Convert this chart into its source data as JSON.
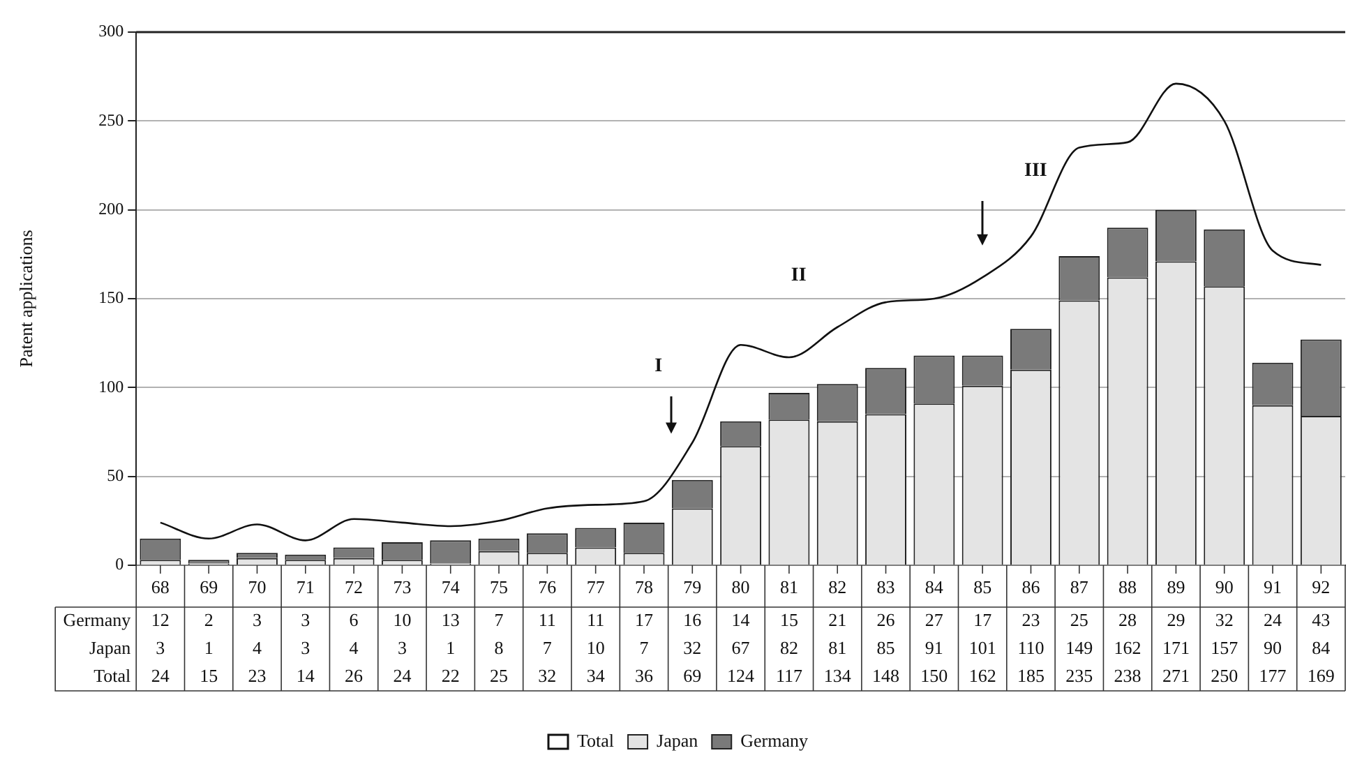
{
  "chart_data": {
    "type": "bar",
    "ylabel": "Patent applications",
    "categories": [
      "68",
      "69",
      "70",
      "71",
      "72",
      "73",
      "74",
      "75",
      "76",
      "77",
      "78",
      "79",
      "80",
      "81",
      "82",
      "83",
      "84",
      "85",
      "86",
      "87",
      "88",
      "89",
      "90",
      "91",
      "92"
    ],
    "series": [
      {
        "name": "Japan",
        "color": "#e4e4e4",
        "values": [
          3,
          1,
          4,
          3,
          4,
          3,
          1,
          8,
          7,
          10,
          7,
          32,
          67,
          82,
          81,
          85,
          91,
          101,
          110,
          149,
          162,
          171,
          157,
          90,
          84
        ]
      },
      {
        "name": "Germany",
        "color": "#7a7a7a",
        "values": [
          12,
          2,
          3,
          3,
          6,
          10,
          13,
          7,
          11,
          11,
          17,
          16,
          14,
          15,
          21,
          26,
          27,
          17,
          23,
          25,
          28,
          29,
          32,
          24,
          43
        ]
      },
      {
        "name": "Total",
        "type": "line",
        "color": "#111111",
        "values": [
          24,
          15,
          23,
          14,
          26,
          24,
          22,
          25,
          32,
          34,
          36,
          69,
          124,
          117,
          134,
          148,
          150,
          162,
          185,
          235,
          238,
          271,
          250,
          177,
          169
        ]
      }
    ],
    "stacked": true,
    "ylim": [
      0,
      300
    ],
    "yticks": [
      0,
      50,
      100,
      150,
      200,
      250,
      300
    ],
    "grid": "y",
    "legend": "bottom",
    "data_labels": true,
    "marker": "none",
    "annotations": [
      "I",
      "II",
      "III"
    ]
  }
}
